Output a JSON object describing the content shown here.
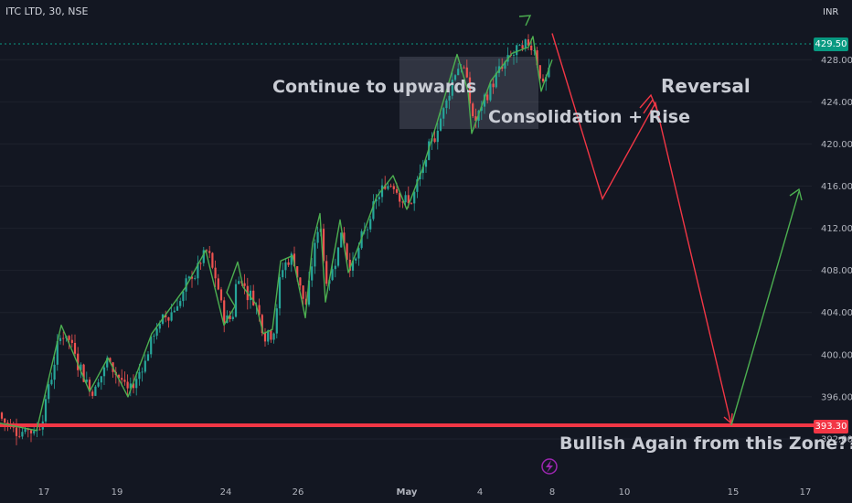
{
  "header": {
    "symbol": "ITC LTD, 30, NSE",
    "currency": "INR"
  },
  "annotations": {
    "continue": "Continue to upwards",
    "consolidation": "Consolidation + Rise",
    "reversal": "Reversal",
    "bullish": "Bullish Again from this Zone??"
  },
  "price_labels": {
    "last": "429.50",
    "support": "393.30"
  },
  "colors": {
    "background": "#131722",
    "up": "#26a69a",
    "down": "#ef5350",
    "green_line": "#4caf50",
    "red_line": "#f23645",
    "support_line": "#f23645",
    "last_price": "#089981",
    "event_icon": "#9c27b0"
  },
  "event_icon": "lightning-bolt-icon",
  "chart_data": {
    "type": "candlestick",
    "title": "ITC LTD, 30, NSE",
    "xlabel": "",
    "ylabel": "",
    "currency": "INR",
    "ylim": [
      389,
      431
    ],
    "y_ticks": [
      "428.00",
      "424.00",
      "420.00",
      "416.00",
      "412.00",
      "408.00",
      "404.00",
      "400.00",
      "396.00",
      "392.00"
    ],
    "x_ticks": [
      "17",
      "19",
      "24",
      "26",
      "May",
      "4",
      "8",
      "10",
      "15",
      "17"
    ],
    "last_price": 429.5,
    "support_level": 393.3,
    "drawn_path_green": {
      "style": "zigzag trend line",
      "values": [
        393.5,
        392.8,
        402.8,
        396.5,
        399.7,
        396.0,
        402.0,
        406.4,
        409.9,
        402.8,
        404.6,
        405.9,
        408.8,
        406.4,
        404.8,
        402.0,
        402.4,
        408.9,
        409.4,
        403.5,
        410.6,
        413.4,
        405.0,
        412.8,
        407.8,
        410.7,
        415.0,
        417.0,
        413.8,
        417.6,
        422.0,
        428.5,
        425.0,
        421.0,
        426.0,
        428.6,
        429.2,
        430.2,
        425.0,
        428.0
      ]
    },
    "projection_red": {
      "description": "projected move down, bounce, then to support",
      "values": [
        430.5,
        414.8,
        423.9,
        393.3
      ]
    },
    "projection_green": {
      "description": "projected rise after support",
      "values": [
        393.3,
        415.5
      ]
    },
    "consolidation_zone": {
      "low": 421.5,
      "high": 428.6
    }
  }
}
